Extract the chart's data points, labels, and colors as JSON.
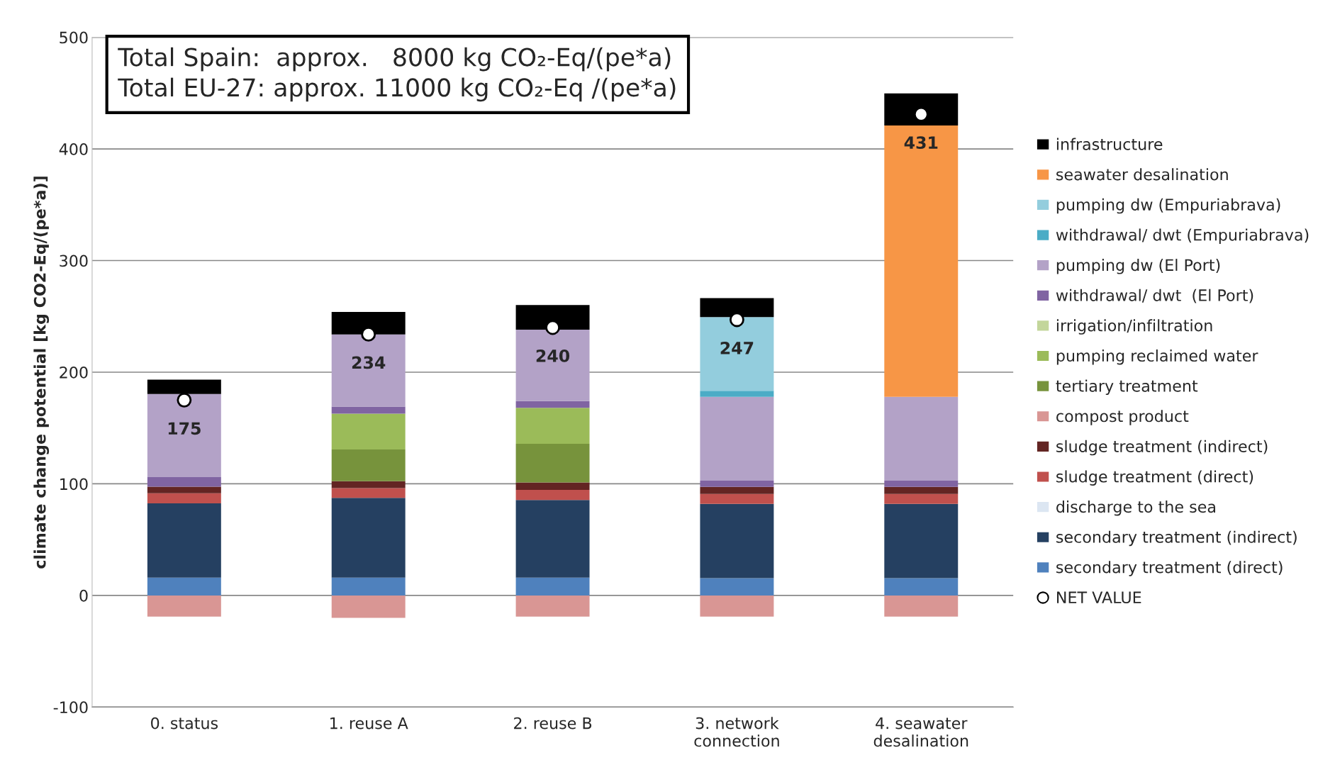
{
  "chart_data": {
    "type": "bar",
    "stacked": true,
    "ylabel": "climate change potential [kg CO2-Eq/(pe*a)]",
    "annotations": [
      "Total Spain:  approx.   8000 kg CO₂-Eq/(pe*a)",
      "Total EU-27: approx. 11000 kg CO₂-Eq /(pe*a)"
    ],
    "categories": [
      "0. status",
      "1. reuse A",
      "2. reuse B",
      "3. network\nconnection",
      "4. seawater\ndesalination"
    ],
    "ylim": [
      -100,
      500
    ],
    "yticks": [
      -100,
      0,
      100,
      200,
      300,
      400,
      500
    ],
    "grid": "y",
    "legend": "right",
    "series": [
      {
        "name": "secondary treatment (direct)",
        "color": "#4f81bd",
        "values": [
          16,
          16,
          16,
          15.5,
          15.5
        ]
      },
      {
        "name": "secondary treatment (indirect)",
        "color": "#254061",
        "values": [
          66.5,
          71.4,
          69.5,
          66.6,
          66.6
        ]
      },
      {
        "name": "discharge to the sea",
        "color": "#dce6f2",
        "values": [
          0,
          0,
          0,
          0,
          0
        ]
      },
      {
        "name": "sludge treatment (direct)",
        "color": "#c0504d",
        "values": [
          9,
          8.7,
          9,
          8.8,
          8.8
        ]
      },
      {
        "name": "sludge treatment (indirect)",
        "color": "#632523",
        "values": [
          6,
          6.3,
          6.8,
          6.3,
          6.3
        ]
      },
      {
        "name": "compost product",
        "color": "#d99694",
        "values": [
          -19,
          -20,
          -19,
          -19,
          -19
        ]
      },
      {
        "name": "tertiary treatment",
        "color": "#77933c",
        "values": [
          0,
          28.3,
          34.6,
          0,
          0
        ]
      },
      {
        "name": "pumping reclaimed water",
        "color": "#9bbb59",
        "values": [
          0,
          32.2,
          32.2,
          0,
          0
        ]
      },
      {
        "name": "irrigation/infiltration",
        "color": "#c3d69b",
        "values": [
          0,
          0,
          0,
          0,
          0
        ]
      },
      {
        "name": "withdrawal/ dwt  (El Port)",
        "color": "#8064a2",
        "values": [
          8.5,
          6.3,
          6,
          5.7,
          5.7
        ]
      },
      {
        "name": "pumping dw (El Port)",
        "color": "#b3a2c7",
        "values": [
          74.4,
          64.6,
          64,
          75,
          75
        ]
      },
      {
        "name": "withdrawal/ dwt (Empuriabrava)",
        "color": "#4bacc6",
        "values": [
          0,
          0,
          0,
          5.4,
          0
        ]
      },
      {
        "name": "pumping dw (Empuriabrava)",
        "color": "#93cddd",
        "values": [
          0,
          0,
          0,
          66,
          0
        ]
      },
      {
        "name": "seawater desalination",
        "color": "#f79646",
        "values": [
          0,
          0,
          0,
          0,
          243.1
        ]
      },
      {
        "name": "infrastructure",
        "color": "#000000",
        "values": [
          13,
          20.2,
          22,
          17,
          28.8
        ]
      },
      {
        "name": "NET VALUE",
        "type": "scatter",
        "marker": "circle",
        "color": "#ffffff",
        "data_labels": true,
        "values": [
          175,
          234,
          240,
          247,
          431
        ]
      }
    ]
  }
}
